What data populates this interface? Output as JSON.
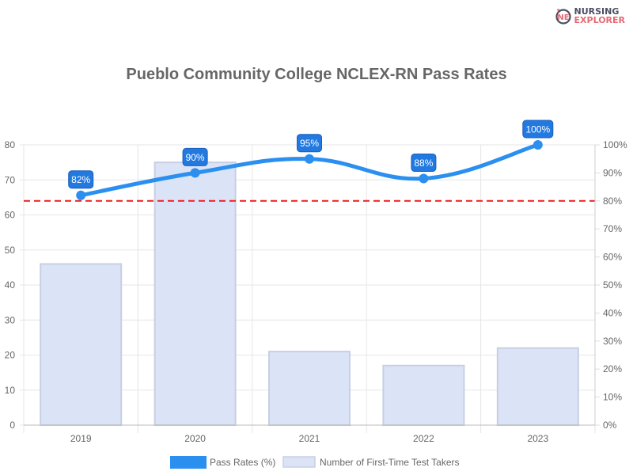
{
  "logo": {
    "line1": "NURSING",
    "line2": "EXPLORER"
  },
  "chart_data": {
    "type": "bar+line",
    "title": "Pueblo Community College NCLEX-RN Pass Rates",
    "categories": [
      "2019",
      "2020",
      "2021",
      "2022",
      "2023"
    ],
    "series": [
      {
        "name": "Pass Rates (%)",
        "type": "line",
        "axis": "right",
        "values": [
          82,
          90,
          95,
          88,
          100
        ],
        "labels": [
          "82%",
          "90%",
          "95%",
          "88%",
          "100%"
        ],
        "color": "#2b8ff0"
      },
      {
        "name": "Number of First-Time Test Takers",
        "type": "bar",
        "axis": "left",
        "values": [
          46,
          75,
          21,
          17,
          22
        ],
        "color": "#dbe3f7"
      }
    ],
    "left_axis": {
      "ylim": [
        0,
        80
      ],
      "ticks": [
        "0",
        "10",
        "20",
        "30",
        "40",
        "50",
        "60",
        "70",
        "80"
      ]
    },
    "right_axis": {
      "ylim": [
        0,
        100
      ],
      "ticks": [
        "0%",
        "10%",
        "20%",
        "30%",
        "40%",
        "50%",
        "60%",
        "70%",
        "80%",
        "90%",
        "100%"
      ]
    },
    "reference_line": {
      "value": 80,
      "axis": "right",
      "color": "#ee1c1c",
      "style": "dashed"
    },
    "grid": true,
    "legend": "bottom"
  }
}
